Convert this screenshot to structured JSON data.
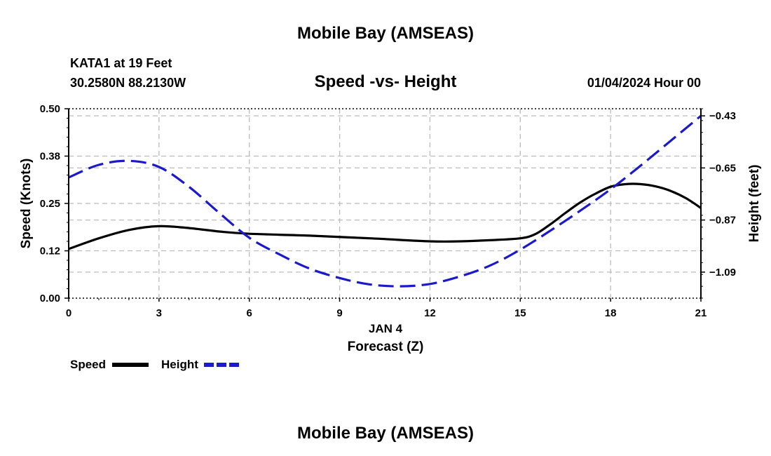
{
  "header": {
    "main_title": "Mobile Bay (AMSEAS)",
    "station": "KATA1 at 19 Feet",
    "coords": "30.2580N  88.2130W",
    "subtitle": "Speed -vs- Height",
    "datetime": "01/04/2024 Hour 00"
  },
  "footer": {
    "main_title": "Mobile Bay (AMSEAS)"
  },
  "colors": {
    "speed": "#000000",
    "height": "#1a1acc",
    "grid": "#bbbbbb"
  },
  "chart_data": {
    "type": "line",
    "title": "Speed -vs- Height",
    "xlabel": "Forecast (Z)",
    "xlabel_date": "JAN 4",
    "ylabel": "Speed (Knots)",
    "y2label": "Height (feet)",
    "xlim": [
      0,
      21
    ],
    "ylim": [
      0,
      0.5
    ],
    "y2lim": [
      -1.2,
      -0.4
    ],
    "x_ticks": [
      0,
      3,
      6,
      9,
      12,
      15,
      18,
      21
    ],
    "x_tick_labels": [
      "0",
      "3",
      "6",
      "9",
      "12",
      "15",
      "18",
      "21"
    ],
    "y_ticks": [
      0.0,
      0.125,
      0.25,
      0.375,
      0.5
    ],
    "y_tick_labels": [
      "0.00",
      "0.12",
      "0.25",
      "0.38",
      "0.50"
    ],
    "y2_ticks": [
      -0.43,
      -0.65,
      -0.87,
      -1.09
    ],
    "y2_tick_labels": [
      "−0.43",
      "−0.65",
      "−0.87",
      "−1.09"
    ],
    "grid": true,
    "legend": [
      {
        "name": "Speed",
        "style": "solid"
      },
      {
        "name": "Height",
        "style": "dashed"
      }
    ],
    "series": [
      {
        "name": "Speed",
        "axis": "left",
        "style": "solid",
        "x": [
          0,
          1,
          2,
          3,
          4,
          5,
          6,
          8,
          10,
          12,
          13,
          14,
          15,
          15.5,
          16,
          16.5,
          17,
          17.5,
          18,
          18.5,
          19,
          19.5,
          20,
          20.5,
          21
        ],
        "values": [
          0.13,
          0.158,
          0.18,
          0.19,
          0.185,
          0.176,
          0.17,
          0.165,
          0.158,
          0.15,
          0.15,
          0.153,
          0.158,
          0.169,
          0.195,
          0.225,
          0.253,
          0.276,
          0.294,
          0.301,
          0.301,
          0.295,
          0.283,
          0.264,
          0.238
        ]
      },
      {
        "name": "Height",
        "axis": "right",
        "style": "dashed",
        "x": [
          0,
          1,
          2,
          3,
          4,
          5,
          6,
          7,
          8,
          9,
          10,
          11,
          12,
          13,
          14,
          15,
          16,
          17,
          18,
          19,
          20,
          21
        ],
        "values": [
          -0.69,
          -0.637,
          -0.62,
          -0.646,
          -0.73,
          -0.84,
          -0.945,
          -1.015,
          -1.075,
          -1.115,
          -1.142,
          -1.15,
          -1.14,
          -1.108,
          -1.062,
          -0.995,
          -0.915,
          -0.83,
          -0.74,
          -0.64,
          -0.535,
          -0.43
        ]
      }
    ]
  }
}
